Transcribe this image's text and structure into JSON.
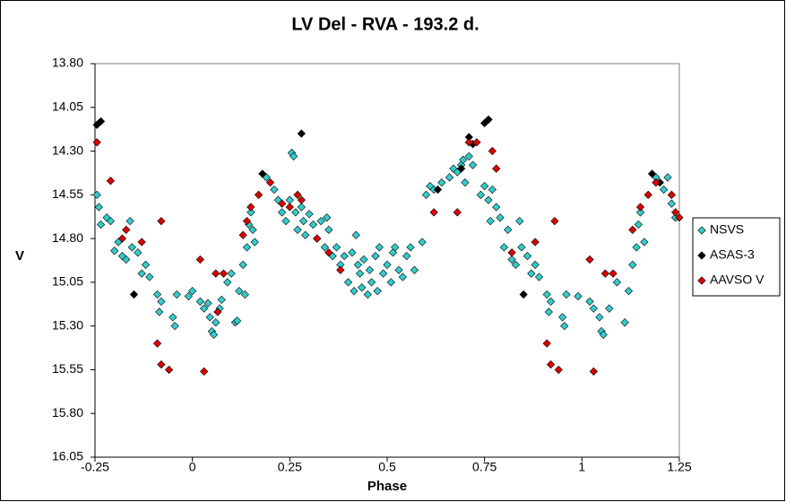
{
  "chart_data": {
    "type": "scatter",
    "title": "LV Del - RVA - 193.2 d.",
    "x_label": "Phase",
    "y_label": "V",
    "xlim": [
      -0.25,
      1.25
    ],
    "xticks": [
      -0.25,
      0,
      0.25,
      0.5,
      0.75,
      1,
      1.25
    ],
    "ylim": [
      13.8,
      16.05
    ],
    "y_inverted": true,
    "yticks": [
      {
        "value": 13.8,
        "label": "13.80"
      },
      {
        "value": 14.05,
        "label": "14.05"
      },
      {
        "value": 14.3,
        "label": "14.30"
      },
      {
        "value": 14.55,
        "label": "14.55"
      },
      {
        "value": 14.8,
        "label": "14.80"
      },
      {
        "value": 15.05,
        "label": "15.05"
      },
      {
        "value": 15.3,
        "label": "15.30"
      },
      {
        "value": 15.55,
        "label": "15.55"
      },
      {
        "value": 15.8,
        "label": "15.80"
      },
      {
        "value": 16.05,
        "label": "16.05"
      }
    ],
    "legend": "right",
    "series": [
      {
        "name": "NSVS",
        "color": "#33cccc",
        "x": [
          -0.245,
          -0.24,
          -0.235,
          -0.22,
          -0.21,
          -0.2,
          -0.19,
          -0.18,
          -0.17,
          -0.16,
          -0.155,
          -0.14,
          -0.13,
          -0.12,
          -0.11,
          -0.09,
          -0.085,
          -0.08,
          -0.05,
          -0.045,
          -0.04,
          -0.01,
          0.0,
          0.02,
          0.03,
          0.04,
          0.045,
          0.05,
          0.055,
          0.06,
          0.07,
          0.075,
          0.09,
          0.1,
          0.11,
          0.115,
          0.12,
          0.13,
          0.135,
          0.14,
          0.145,
          0.15,
          0.155,
          0.16,
          0.19,
          0.21,
          0.22,
          0.23,
          0.24,
          0.25,
          0.255,
          0.26,
          0.265,
          0.27,
          0.28,
          0.285,
          0.29,
          0.3,
          0.31,
          0.32,
          0.33,
          0.34,
          0.345,
          0.35,
          0.36,
          0.37,
          0.38,
          0.39,
          0.4,
          0.41,
          0.415,
          0.42,
          0.425,
          0.43,
          0.435,
          0.44,
          0.45,
          0.455,
          0.46,
          0.47,
          0.475,
          0.48,
          0.49,
          0.5,
          0.51,
          0.515,
          0.52,
          0.53,
          0.54,
          0.55,
          0.56,
          0.57,
          0.59,
          0.6,
          0.61,
          0.62,
          0.64,
          0.66,
          0.67,
          0.68,
          0.69,
          0.695,
          0.7,
          0.71,
          0.72,
          0.74,
          0.75,
          0.76,
          0.765,
          0.77,
          0.78,
          0.79,
          0.8,
          0.81,
          0.82,
          0.83,
          0.84,
          0.845,
          0.86,
          0.87,
          0.88,
          0.89,
          0.91,
          0.915,
          0.92,
          0.95,
          0.955,
          0.96,
          0.99,
          1.02,
          1.03,
          1.045,
          1.05,
          1.055,
          1.07,
          1.09,
          1.11,
          1.12,
          1.13,
          1.14,
          1.145,
          1.15,
          1.16,
          1.19,
          1.21,
          1.22,
          1.23,
          1.24
        ],
        "values": [
          14.55,
          14.62,
          14.72,
          14.68,
          14.7,
          14.87,
          14.82,
          14.9,
          14.92,
          14.7,
          14.85,
          14.88,
          15.0,
          14.95,
          15.02,
          15.12,
          15.22,
          15.16,
          15.25,
          15.3,
          15.12,
          15.13,
          15.1,
          15.16,
          15.2,
          15.17,
          15.25,
          15.33,
          15.35,
          15.28,
          15.2,
          15.15,
          15.05,
          15.0,
          15.28,
          15.27,
          15.1,
          14.95,
          15.12,
          14.85,
          14.72,
          14.65,
          14.75,
          14.82,
          14.45,
          14.52,
          14.58,
          14.65,
          14.7,
          14.58,
          14.31,
          14.33,
          14.65,
          14.75,
          14.62,
          14.7,
          14.78,
          14.66,
          14.72,
          14.8,
          14.7,
          14.85,
          14.68,
          14.75,
          14.9,
          14.85,
          14.95,
          14.9,
          15.05,
          14.88,
          15.1,
          14.78,
          14.95,
          15.0,
          15.08,
          14.92,
          15.12,
          14.98,
          15.05,
          14.9,
          15.1,
          14.85,
          15.0,
          14.95,
          15.05,
          14.88,
          14.85,
          14.98,
          15.02,
          14.9,
          14.85,
          14.98,
          14.82,
          14.55,
          14.5,
          14.52,
          14.48,
          14.45,
          14.4,
          14.42,
          14.38,
          14.35,
          14.48,
          14.33,
          14.38,
          14.55,
          14.5,
          14.58,
          14.7,
          14.52,
          14.62,
          14.68,
          14.85,
          14.75,
          14.92,
          14.95,
          14.7,
          14.85,
          14.9,
          15.0,
          14.95,
          15.02,
          15.12,
          15.22,
          15.16,
          15.25,
          15.3,
          15.12,
          15.13,
          15.16,
          15.2,
          15.25,
          15.33,
          15.35,
          15.2,
          15.05,
          15.28,
          15.1,
          14.95,
          14.85,
          14.72,
          14.65,
          14.82,
          14.45,
          14.52,
          14.45,
          14.6,
          14.68
        ]
      },
      {
        "name": "ASAS-3",
        "color": "#000000",
        "x": [
          -0.245,
          -0.235,
          -0.15,
          0.18,
          0.28,
          0.63,
          0.69,
          0.71,
          0.72,
          0.75,
          0.76,
          0.85,
          1.18,
          1.2
        ],
        "values": [
          14.15,
          14.13,
          15.12,
          14.43,
          14.2,
          14.52,
          14.4,
          14.22,
          14.26,
          14.14,
          14.12,
          15.12,
          14.43,
          14.48
        ]
      },
      {
        "name": "AAVSO V",
        "color": "#dd0000",
        "x": [
          -0.245,
          -0.21,
          -0.17,
          -0.18,
          -0.13,
          -0.09,
          -0.08,
          -0.08,
          -0.06,
          0.02,
          0.03,
          0.06,
          0.065,
          0.08,
          0.13,
          0.14,
          0.15,
          0.17,
          0.2,
          0.23,
          0.25,
          0.27,
          0.28,
          0.32,
          0.35,
          0.38,
          0.62,
          0.68,
          0.71,
          0.73,
          0.77,
          0.78,
          0.82,
          0.88,
          0.91,
          0.92,
          0.93,
          0.94,
          1.02,
          1.03,
          1.06,
          1.08,
          1.13,
          1.15,
          1.17,
          1.19,
          1.23,
          1.24,
          1.25
        ],
        "values": [
          14.25,
          14.47,
          14.75,
          14.8,
          14.82,
          15.4,
          15.52,
          14.7,
          15.55,
          14.92,
          15.56,
          15.0,
          15.22,
          15.0,
          14.78,
          14.7,
          14.62,
          14.55,
          14.48,
          14.6,
          14.62,
          14.55,
          14.58,
          14.8,
          14.88,
          14.98,
          14.65,
          14.65,
          14.25,
          14.25,
          14.3,
          14.4,
          14.88,
          14.82,
          15.4,
          15.52,
          14.7,
          15.55,
          14.92,
          15.56,
          15.0,
          15.0,
          14.75,
          14.62,
          14.55,
          14.48,
          14.55,
          14.65,
          14.68
        ]
      }
    ]
  }
}
